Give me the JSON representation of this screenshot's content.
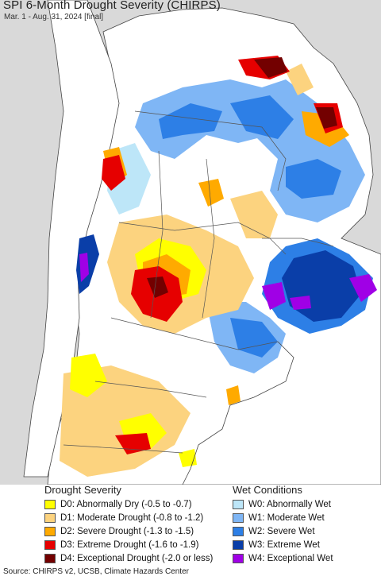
{
  "header": {
    "title": "SPI 6-Month Drought Severity (CHIRPS)",
    "subtitle": "Mar. 1 - Aug. 31, 2024 [final]"
  },
  "legend": {
    "drought_title": "Drought Severity",
    "drought_items": [
      {
        "label": "D0: Abnormally Dry (-0.5 to -0.7)",
        "color": "#ffff00"
      },
      {
        "label": "D1: Moderate Drought (-0.8 to -1.2)",
        "color": "#fcd37f"
      },
      {
        "label": "D2: Severe Drought (-1.3 to -1.5)",
        "color": "#ffaa00"
      },
      {
        "label": "D3: Extreme Drought (-1.6 to -1.9)",
        "color": "#e60000"
      },
      {
        "label": "D4: Exceptional Drought (-2.0 or less)",
        "color": "#730000"
      }
    ],
    "wet_title": "Wet Conditions",
    "wet_items": [
      {
        "label": "W0: Abnormally Wet",
        "color": "#bde6f8"
      },
      {
        "label": "W1: Moderate Wet",
        "color": "#7fb6f5"
      },
      {
        "label": "W2: Severe Wet",
        "color": "#2d7fe6"
      },
      {
        "label": "W3: Extreme Wet",
        "color": "#0a3ea8"
      },
      {
        "label": "W4: Exceptional Wet",
        "color": "#a000e6"
      }
    ]
  },
  "footer": {
    "source": "Source: CHIRPS v2, UCSB, Climate Hazards Center"
  },
  "colors": {
    "land": "#ffffff",
    "outside": "#d9d9d9",
    "border": "#555555"
  }
}
